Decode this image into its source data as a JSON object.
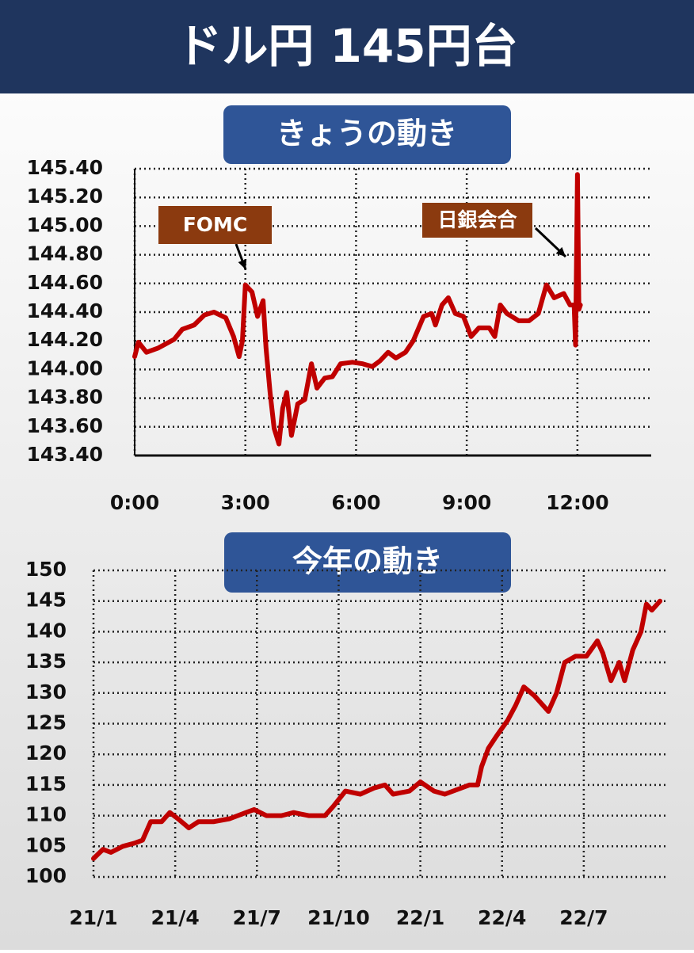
{
  "title": "ドル円 145円台",
  "chart_data": [
    {
      "type": "line",
      "title": "きょうの動き",
      "x": [
        0,
        0.1,
        0.32,
        0.64,
        1.07,
        1.29,
        1.61,
        1.89,
        2.15,
        2.47,
        2.68,
        2.83,
        2.92,
        3.0,
        3.18,
        3.33,
        3.48,
        3.56,
        3.67,
        3.78,
        3.91,
        4.01,
        4.12,
        4.25,
        4.42,
        4.61,
        4.79,
        4.94,
        5.15,
        5.36,
        5.58,
        5.9,
        6.18,
        6.44,
        6.65,
        6.87,
        7.08,
        7.34,
        7.55,
        7.83,
        8.05,
        8.15,
        8.33,
        8.5,
        8.69,
        8.91,
        9.12,
        9.33,
        9.61,
        9.76,
        9.91,
        10.09,
        10.41,
        10.69,
        10.94,
        11.16,
        11.37,
        11.63,
        11.8,
        11.91,
        11.95,
        12.0,
        12.04,
        12.08
      ],
      "values": [
        144.09,
        144.19,
        144.12,
        144.15,
        144.21,
        144.28,
        144.31,
        144.38,
        144.4,
        144.36,
        144.23,
        144.09,
        144.2,
        144.59,
        144.54,
        144.37,
        144.48,
        144.15,
        143.84,
        143.59,
        143.48,
        143.73,
        143.84,
        143.54,
        143.76,
        143.79,
        144.04,
        143.87,
        143.94,
        143.95,
        144.04,
        144.05,
        144.04,
        144.02,
        144.06,
        144.12,
        144.08,
        144.12,
        144.2,
        144.37,
        144.39,
        144.31,
        144.45,
        144.5,
        144.39,
        144.37,
        144.23,
        144.29,
        144.29,
        144.23,
        144.45,
        144.39,
        144.34,
        144.34,
        144.39,
        144.59,
        144.5,
        144.53,
        144.45,
        144.45,
        144.17,
        145.36,
        144.42,
        144.45
      ],
      "color": "#c00000",
      "xlim": [
        0,
        14
      ],
      "xticks": [
        {
          "value": 0,
          "label": "0:00"
        },
        {
          "value": 3,
          "label": "3:00"
        },
        {
          "value": 6,
          "label": "6:00"
        },
        {
          "value": 9,
          "label": "9:00"
        },
        {
          "value": 12,
          "label": "12:00"
        }
      ],
      "ylim": [
        143.4,
        145.4
      ],
      "yticks": [
        {
          "value": 143.4,
          "label": "143.40"
        },
        {
          "value": 143.6,
          "label": "143.60"
        },
        {
          "value": 143.8,
          "label": "143.80"
        },
        {
          "value": 144,
          "label": "144.00"
        },
        {
          "value": 144.2,
          "label": "144.20"
        },
        {
          "value": 144.4,
          "label": "144.40"
        },
        {
          "value": 144.6,
          "label": "144.60"
        },
        {
          "value": 144.8,
          "label": "144.80"
        },
        {
          "value": 145,
          "label": "145.00"
        },
        {
          "value": 145.2,
          "label": "145.20"
        },
        {
          "value": 145.4,
          "label": "145.40"
        }
      ],
      "grid": true,
      "annotations": [
        "FOMC",
        "日銀会合"
      ]
    },
    {
      "type": "line",
      "title": "今年の動き",
      "x": [
        0,
        0.35,
        0.64,
        1.08,
        1.5,
        1.8,
        2.1,
        2.5,
        2.8,
        3.1,
        3.5,
        3.85,
        4.4,
        5,
        5.6,
        5.9,
        6.35,
        6.9,
        7.35,
        7.9,
        8.5,
        8.8,
        9.25,
        9.8,
        10.3,
        10.7,
        11,
        11.6,
        12,
        12.5,
        12.9,
        13.8,
        14.1,
        14.25,
        14.5,
        14.8,
        15.2,
        15.5,
        15.8,
        16.2,
        16.7,
        17,
        17.3,
        17.7,
        18.1,
        18.5,
        18.7,
        19,
        19.3,
        19.5,
        19.8,
        20.1,
        20.3,
        20.5,
        20.8
      ],
      "values": [
        103,
        104.5,
        104,
        105,
        105.5,
        106,
        109,
        109,
        110.5,
        109.5,
        108,
        109,
        109,
        109.5,
        110.5,
        111,
        110,
        110,
        110.5,
        110,
        110,
        111.5,
        114,
        113.5,
        114.5,
        115,
        113.5,
        114,
        115.5,
        114,
        113.5,
        115,
        115,
        118,
        121,
        123,
        125.5,
        128,
        131,
        129.5,
        127,
        130,
        135,
        136,
        136,
        138.5,
        136.5,
        132,
        135,
        132,
        137,
        140,
        144.5,
        143.5,
        145
      ],
      "color": "#c00000",
      "xlim": [
        0,
        21
      ],
      "xticks": [
        {
          "value": 0,
          "label": "21/1"
        },
        {
          "value": 3,
          "label": "21/4"
        },
        {
          "value": 6,
          "label": "21/7"
        },
        {
          "value": 9,
          "label": "21/10"
        },
        {
          "value": 12,
          "label": "22/1"
        },
        {
          "value": 15,
          "label": "22/4"
        },
        {
          "value": 18,
          "label": "22/7"
        }
      ],
      "ylim": [
        100,
        150
      ],
      "yticks": [
        100,
        105,
        110,
        115,
        120,
        125,
        130,
        135,
        140,
        145,
        150
      ],
      "grid": true
    }
  ]
}
